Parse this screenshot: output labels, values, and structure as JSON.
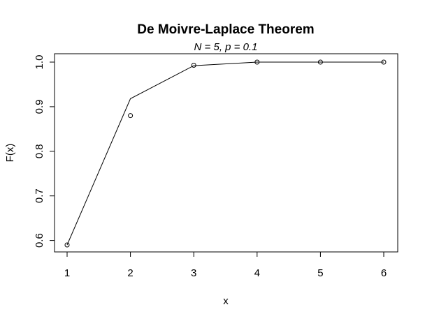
{
  "chart_data": {
    "type": "line",
    "title": "De Moivre-Laplace Theorem",
    "subtitle": "N = 5,  p = 0.1",
    "xlabel": "x",
    "ylabel": "F(x)",
    "xlim": [
      1,
      6
    ],
    "ylim": [
      0.59,
      1.0
    ],
    "x_ticks": [
      1,
      2,
      3,
      4,
      5,
      6
    ],
    "y_ticks": [
      0.6,
      0.7,
      0.8,
      0.9,
      1.0
    ],
    "x_tick_labels": [
      "1",
      "2",
      "3",
      "4",
      "5",
      "6"
    ],
    "y_tick_labels": [
      "0.6",
      "0.7",
      "0.8",
      "0.9",
      "1.0"
    ],
    "grid": false,
    "legend": "none",
    "series": [
      {
        "style": "line",
        "x": [
          1,
          2,
          3,
          4,
          5,
          6
        ],
        "y": [
          0.59,
          0.918,
          0.992,
          1.0,
          1.0,
          1.0
        ]
      },
      {
        "style": "points",
        "x": [
          1,
          2,
          3,
          4,
          5,
          6
        ],
        "y": [
          0.59,
          0.88,
          0.993,
          1.0,
          1.0,
          1.0
        ]
      }
    ]
  }
}
